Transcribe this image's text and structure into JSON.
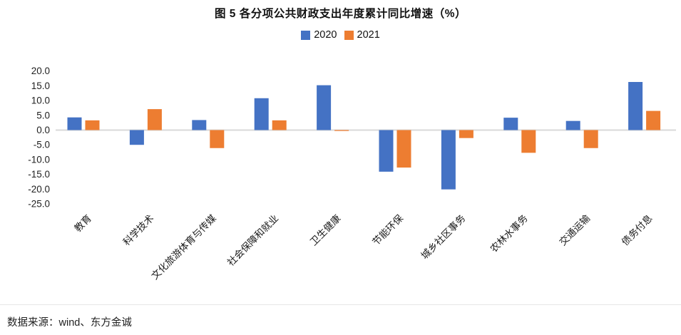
{
  "figure": {
    "title": "图 5  各分项公共财政支出年度累计同比增速（%）",
    "source": "数据来源：wind、东方金诚"
  },
  "legend": {
    "items": [
      {
        "label": "2020",
        "color": "#4472C4"
      },
      {
        "label": "2021",
        "color": "#ED7D31"
      }
    ]
  },
  "chart_data": {
    "type": "bar",
    "title": "图 5  各分项公共财政支出年度累计同比增速（%）",
    "categories": [
      "教育",
      "科学技术",
      "文化旅游体育与传媒",
      "社会保障和就业",
      "卫生健康",
      "节能环保",
      "城乡社区事务",
      "农林水事务",
      "交通运输",
      "债务付息"
    ],
    "series": [
      {
        "name": "2020",
        "color": "#4472C4",
        "values": [
          4.3,
          -5.0,
          3.4,
          10.8,
          15.2,
          -14.1,
          -20.1,
          4.2,
          3.1,
          16.3
        ]
      },
      {
        "name": "2021",
        "color": "#ED7D31",
        "values": [
          3.3,
          7.1,
          -6.1,
          3.3,
          -0.3,
          -12.7,
          -2.7,
          -7.7,
          -6.1,
          6.5
        ]
      }
    ],
    "xlabel": "",
    "ylabel": "",
    "ylim": [
      -25.0,
      20.0
    ],
    "ytick_step": 5.0,
    "ytick_labels": [
      "20.0",
      "15.0",
      "10.0",
      "5.0",
      "0.0",
      "-5.0",
      "-10.0",
      "-15.0",
      "-20.0",
      "-25.0"
    ],
    "grid": false,
    "legend_position": "top-center",
    "axis_line_color": "#d9d9d9",
    "tick_text_color": "#1f1f1f"
  }
}
